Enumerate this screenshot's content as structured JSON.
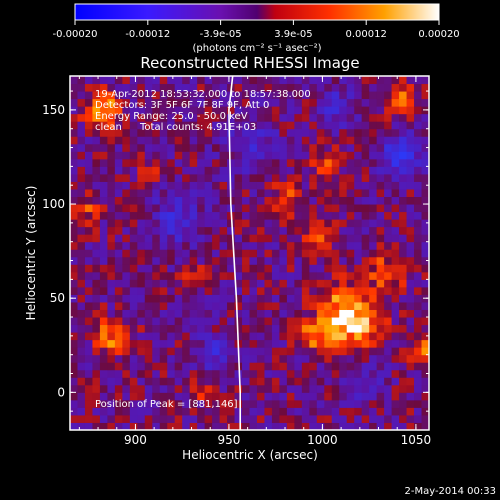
{
  "colorbar": {
    "ticks": [
      "-0.00020",
      "-0.00012",
      "-3.9e-05",
      "3.9e-05",
      "0.00012",
      "0.00020"
    ],
    "unit_label": "(photons cm⁻² s⁻¹ asec⁻²)",
    "colors": [
      "#0000ff",
      "#4000c8",
      "#6a00a0",
      "#ff2000",
      "#ff9000",
      "#ffffff"
    ]
  },
  "chart_data": {
    "type": "heatmap",
    "title": "Reconstructed RHESSI Image",
    "xlabel": "Heliocentric X (arcsec)",
    "ylabel": "Heliocentric Y (arcsec)",
    "xlim": [
      865,
      1057
    ],
    "ylim": [
      -20,
      168
    ],
    "xticks": [
      900,
      950,
      1000,
      1050
    ],
    "yticks": [
      0,
      50,
      100,
      150
    ],
    "xticklabels": [
      "900",
      "950",
      "1000",
      "1050"
    ],
    "yticklabels": [
      "0",
      "50",
      "100",
      "150"
    ],
    "zlim": [
      -0.0002,
      0.0002
    ],
    "limb_curve": [
      [
        952,
        168
      ],
      [
        950,
        150
      ],
      [
        951,
        100
      ],
      [
        954,
        50
      ],
      [
        956,
        0
      ],
      [
        956,
        -20
      ]
    ],
    "annotations": [
      "19-Apr-2012 18:53:32.000 to 18:57:38.000",
      "Detectors: 3F 5F 6F 7F 8F 9F, Att 0",
      "Energy Range: 25.0 - 50.0 keV",
      "clean",
      "Total counts: 4.91E+03"
    ],
    "peak_label": "Position of Peak = [881,146]",
    "peak": [
      881,
      146
    ]
  },
  "footer": {
    "date": "2-May-2014 00:33"
  }
}
